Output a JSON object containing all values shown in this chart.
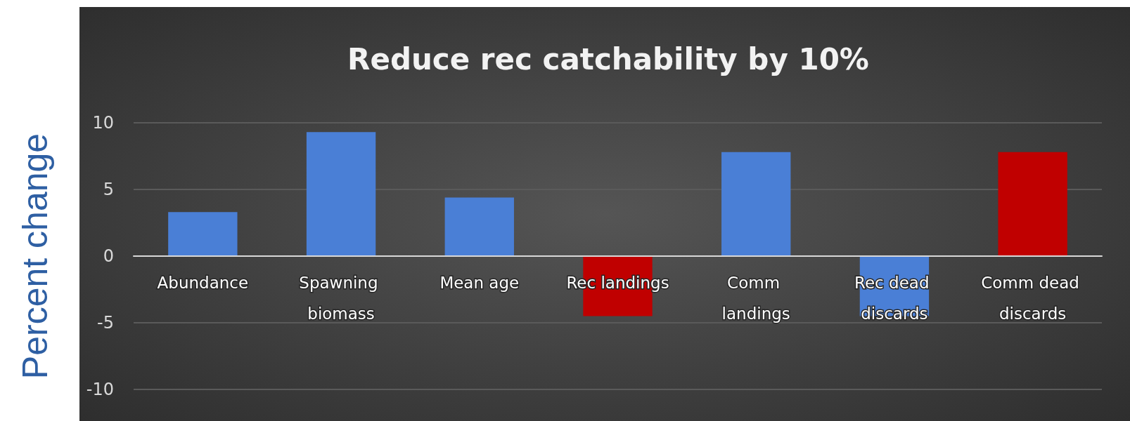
{
  "chart_data": {
    "type": "bar",
    "title": "Reduce rec catchability by 10%",
    "ylabel": "Percent change",
    "categories": [
      "Abundance",
      "Spawning biomass",
      "Mean age",
      "Rec landings",
      "Comm landings",
      "Rec dead discards",
      "Comm dead discards"
    ],
    "values": [
      3.3,
      9.3,
      4.4,
      -4.5,
      7.8,
      -4.5,
      7.8
    ],
    "colors": [
      "#4a7fd6",
      "#4a7fd6",
      "#4a7fd6",
      "#c00000",
      "#4a7fd6",
      "#4a7fd6",
      "#c00000"
    ],
    "ylim": [
      -10,
      10
    ],
    "yticks": [
      -10,
      -5,
      0,
      5,
      10
    ],
    "grid": "y"
  }
}
